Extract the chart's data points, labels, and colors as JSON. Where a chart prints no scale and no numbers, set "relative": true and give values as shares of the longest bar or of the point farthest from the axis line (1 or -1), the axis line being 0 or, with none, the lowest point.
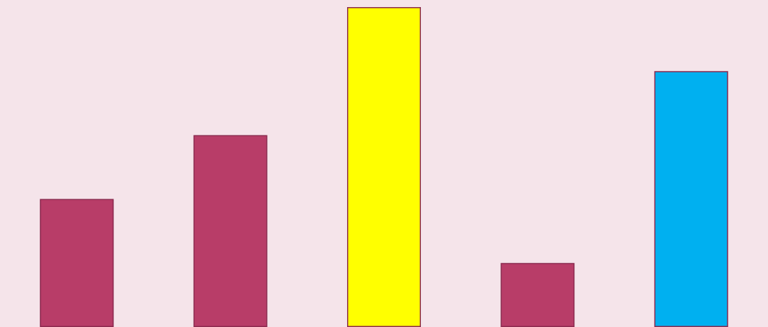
{
  "chart_data": {
    "type": "bar",
    "relative": true,
    "categories": [
      null,
      null,
      null,
      null,
      null
    ],
    "values": [
      0.4,
      0.6,
      1,
      0.2,
      0.8
    ],
    "colors": [
      "#b83d68",
      "#b83d68",
      "#ffff00",
      "#b83d68",
      "#00b0f0"
    ]
  }
}
